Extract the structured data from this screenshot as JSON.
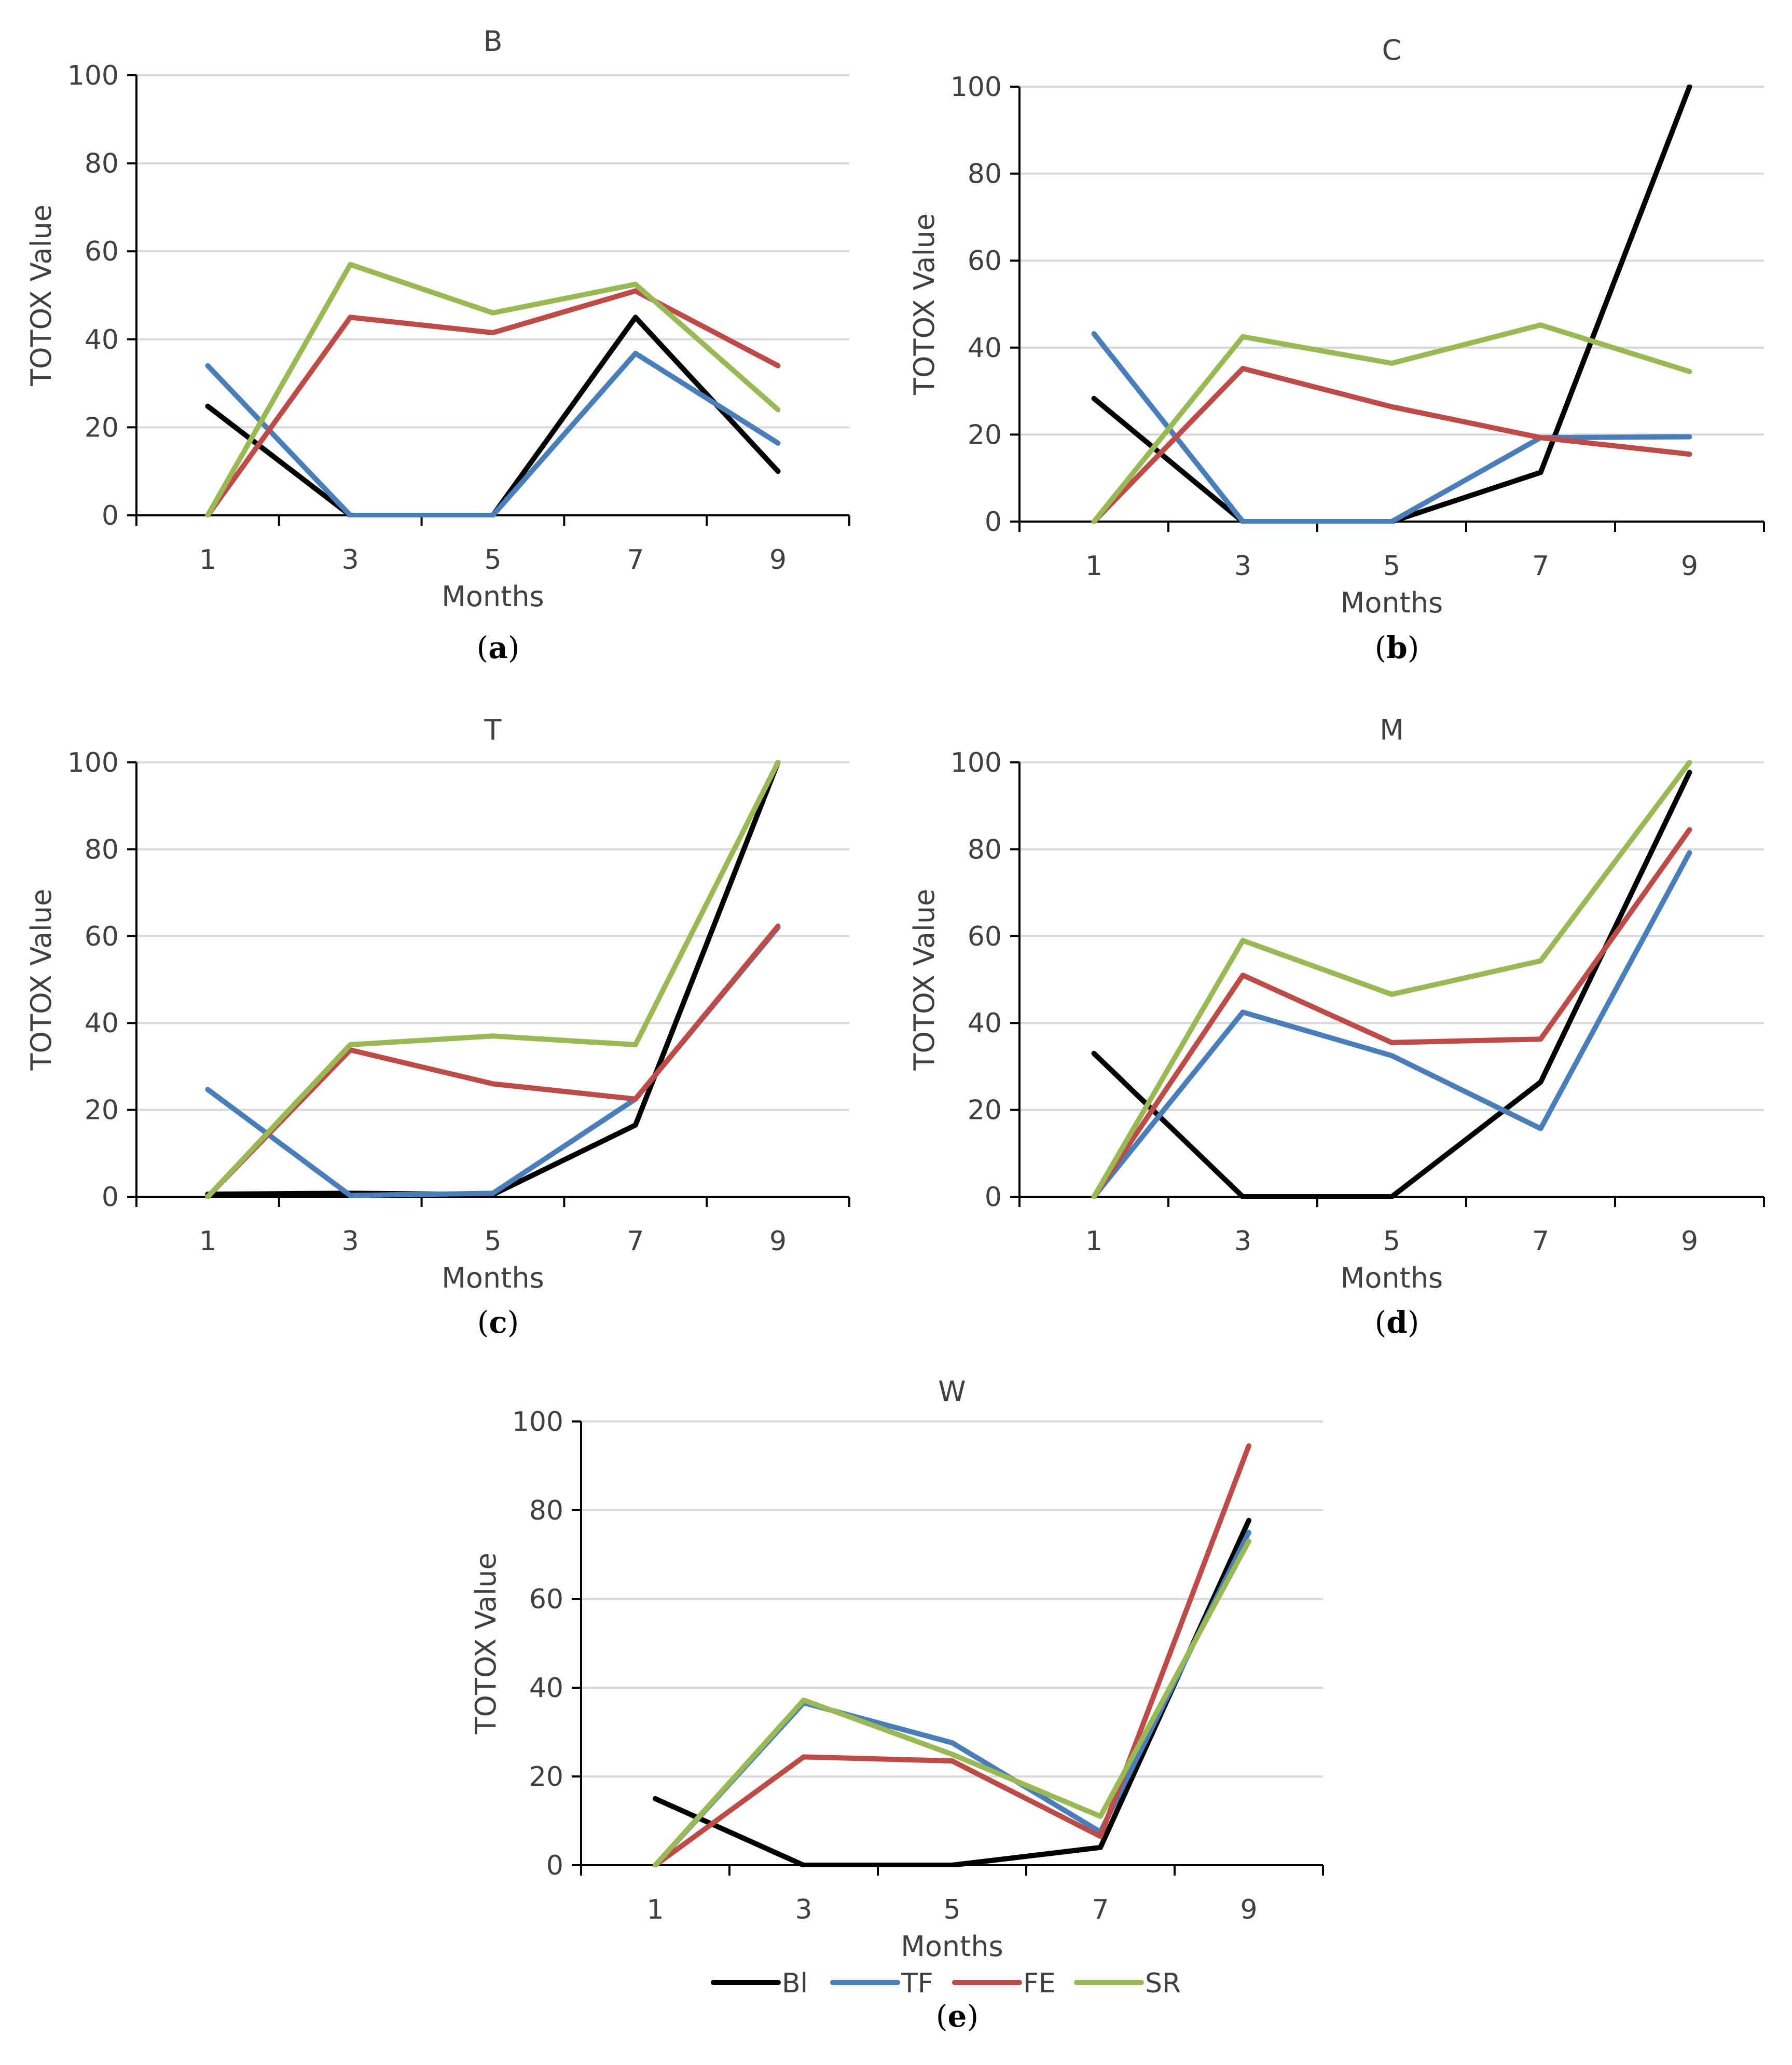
{
  "figure": {
    "legend": [
      {
        "key": "Bl",
        "label": "Bl"
      },
      {
        "key": "TF",
        "label": "TF"
      },
      {
        "key": "FE",
        "label": "FE"
      },
      {
        "key": "SR",
        "label": "SR"
      }
    ],
    "colors": {
      "Bl": "#000000",
      "TF": "#4a7ebb",
      "FE": "#be4b48",
      "SR": "#98b954",
      "grid": "#d9d9d9",
      "axis": "#000000"
    }
  },
  "chart_data": [
    {
      "type": "line",
      "title": "B",
      "subcaption": "(a)",
      "xlabel": "Months",
      "ylabel": "TOTOX Value",
      "x": [
        1,
        3,
        5,
        7,
        9
      ],
      "ylim": [
        0,
        100
      ],
      "yticks": [
        0,
        20,
        40,
        60,
        80,
        100
      ],
      "grid": true,
      "series": [
        {
          "name": "Bl",
          "values": [
            24.8,
            0,
            0,
            45,
            10
          ]
        },
        {
          "name": "TF",
          "values": [
            34,
            0,
            0,
            36.8,
            16.4
          ]
        },
        {
          "name": "FE",
          "values": [
            0,
            45,
            41.5,
            51,
            34
          ]
        },
        {
          "name": "SR",
          "values": [
            0,
            57,
            46,
            52.5,
            24
          ]
        }
      ]
    },
    {
      "type": "line",
      "title": "C",
      "subcaption": "(b)",
      "xlabel": "Months",
      "ylabel": "TOTOX Value",
      "x": [
        1,
        3,
        5,
        7,
        9
      ],
      "ylim": [
        0,
        100
      ],
      "yticks": [
        0,
        20,
        40,
        60,
        80,
        100
      ],
      "grid": true,
      "series": [
        {
          "name": "Bl",
          "values": [
            28.3,
            0,
            0,
            11.3,
            100
          ]
        },
        {
          "name": "TF",
          "values": [
            43.2,
            0,
            0,
            19.3,
            19.5
          ]
        },
        {
          "name": "FE",
          "values": [
            0,
            35.2,
            26.4,
            19.3,
            15.5
          ]
        },
        {
          "name": "SR",
          "values": [
            0,
            42.5,
            36.4,
            45.2,
            34.5
          ]
        }
      ]
    },
    {
      "type": "line",
      "title": "T",
      "subcaption": "(c)",
      "xlabel": "Months",
      "ylabel": "TOTOX Value",
      "x": [
        1,
        3,
        5,
        7,
        9
      ],
      "ylim": [
        0,
        100
      ],
      "yticks": [
        0,
        20,
        40,
        60,
        80,
        100
      ],
      "grid": true,
      "series": [
        {
          "name": "Bl",
          "values": [
            0.6,
            0.8,
            0.5,
            16.5,
            100
          ]
        },
        {
          "name": "TF",
          "values": [
            24.7,
            0.3,
            0.8,
            22.5,
            62
          ]
        },
        {
          "name": "FE",
          "values": [
            0,
            33.8,
            26,
            22.5,
            62.3
          ]
        },
        {
          "name": "SR",
          "values": [
            0,
            35,
            37,
            35,
            100
          ]
        }
      ]
    },
    {
      "type": "line",
      "title": "M",
      "subcaption": "(d)",
      "xlabel": "Months",
      "ylabel": "TOTOX Value",
      "x": [
        1,
        3,
        5,
        7,
        9
      ],
      "ylim": [
        0,
        100
      ],
      "yticks": [
        0,
        20,
        40,
        60,
        80,
        100
      ],
      "grid": true,
      "series": [
        {
          "name": "Bl",
          "values": [
            33,
            0,
            0,
            26.4,
            97.7
          ]
        },
        {
          "name": "TF",
          "values": [
            0,
            42.5,
            32.5,
            15.7,
            79.2
          ]
        },
        {
          "name": "FE",
          "values": [
            0,
            51,
            35.5,
            36.3,
            84.5
          ]
        },
        {
          "name": "SR",
          "values": [
            0,
            59,
            46.6,
            54.3,
            100
          ]
        }
      ]
    },
    {
      "type": "line",
      "title": "W",
      "subcaption": "(e)",
      "xlabel": "Months",
      "ylabel": "TOTOX Value",
      "x": [
        1,
        3,
        5,
        7,
        9
      ],
      "ylim": [
        0,
        100
      ],
      "yticks": [
        0,
        20,
        40,
        60,
        80,
        100
      ],
      "grid": true,
      "series": [
        {
          "name": "Bl",
          "values": [
            15,
            0,
            0,
            4,
            77.7
          ]
        },
        {
          "name": "TF",
          "values": [
            0,
            36.6,
            27.6,
            7.5,
            75
          ]
        },
        {
          "name": "FE",
          "values": [
            0,
            24.4,
            23.5,
            6.5,
            94.5
          ]
        },
        {
          "name": "SR",
          "values": [
            0,
            37.2,
            25,
            11,
            73
          ]
        }
      ]
    }
  ]
}
